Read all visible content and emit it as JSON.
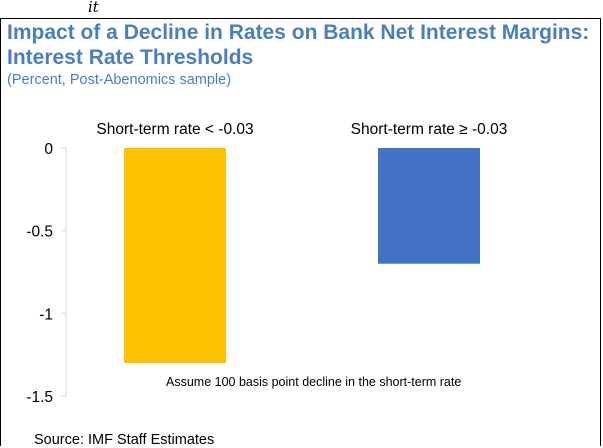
{
  "header": {
    "top_glyph": "it",
    "title_line1": "Impact of a Decline in Rates on Bank Net Interest Margins:",
    "title_line2": "Interest Rate Thresholds",
    "subtitle": "(Percent, Post-Abenomics sample)"
  },
  "footer": {
    "source": "Source: IMF Staff Estimates"
  },
  "chart_data": {
    "type": "bar",
    "title": "Impact of a Decline in Rates on Bank Net Interest Margins: Interest Rate Thresholds",
    "subtitle": "(Percent, Post-Abenomics sample)",
    "categories": [
      "Short-term rate < -0.03",
      "Short-term rate ≥ -0.03"
    ],
    "values": [
      -1.3,
      -0.7
    ],
    "colors": [
      "#ffc000",
      "#4472c4"
    ],
    "xlabel": "",
    "ylabel": "",
    "ylim": [
      -1.5,
      0
    ],
    "yticks": [
      0,
      -0.5,
      -1,
      -1.5
    ],
    "ytick_labels": [
      "0",
      "-0.5",
      "-1",
      "-1.5"
    ],
    "category_label_placement": "top",
    "grid": false,
    "annotation": "Assume 100 basis point decline in the short-term rate"
  }
}
